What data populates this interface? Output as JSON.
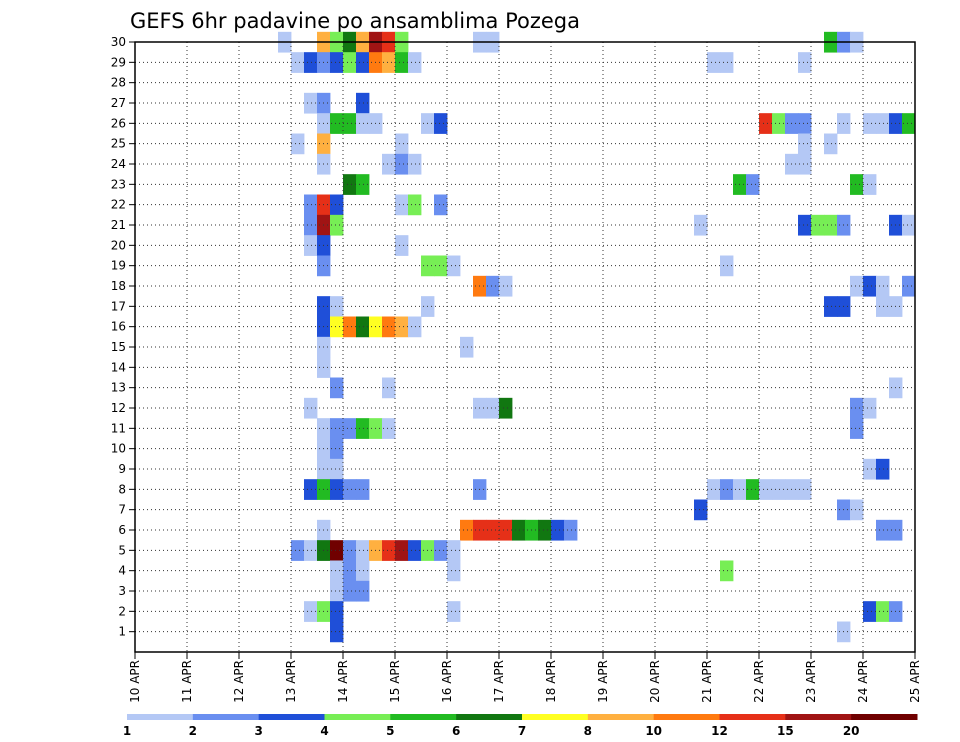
{
  "chart_data": {
    "type": "heatmap",
    "title": "GEFS 6hr padavine po ansamblima Pozega",
    "x_tick_labels": [
      "10 APR",
      "11 APR",
      "12 APR",
      "13 APR",
      "14 APR",
      "15 APR",
      "16 APR",
      "17 APR",
      "18 APR",
      "19 APR",
      "20 APR",
      "21 APR",
      "22 APR",
      "23 APR",
      "24 APR",
      "25 APR"
    ],
    "y_tick_labels": [
      "1",
      "2",
      "3",
      "4",
      "5",
      "6",
      "7",
      "8",
      "9",
      "10",
      "11",
      "12",
      "13",
      "14",
      "15",
      "16",
      "17",
      "18",
      "19",
      "20",
      "21",
      "22",
      "23",
      "24",
      "25",
      "26",
      "27",
      "28",
      "29",
      "30"
    ],
    "time_steps": 60,
    "members": 31,
    "grid": true,
    "colorbar": {
      "labels": [
        "1",
        "2",
        "3",
        "4",
        "5",
        "6",
        "7",
        "8",
        "10",
        "12",
        "15",
        "20"
      ],
      "colors": [
        "#b4c8f5",
        "#6a8ff0",
        "#1f4fd8",
        "#77ee55",
        "#22bb22",
        "#117711",
        "#ffff22",
        "#ffb040",
        "#ff7a10",
        "#e63018",
        "#a01414",
        "#700000"
      ]
    },
    "cells": [
      [
        30,
        11,
        1
      ],
      [
        30,
        14,
        8
      ],
      [
        30,
        15,
        4
      ],
      [
        30,
        16,
        6
      ],
      [
        30,
        17,
        8
      ],
      [
        30,
        18,
        11
      ],
      [
        30,
        19,
        10
      ],
      [
        30,
        20,
        4
      ],
      [
        30,
        26,
        1
      ],
      [
        30,
        27,
        1
      ],
      [
        30,
        53,
        5
      ],
      [
        30,
        54,
        2
      ],
      [
        30,
        55,
        1
      ],
      [
        29,
        12,
        1
      ],
      [
        29,
        13,
        3
      ],
      [
        29,
        14,
        2
      ],
      [
        29,
        15,
        3
      ],
      [
        29,
        16,
        4
      ],
      [
        29,
        17,
        3
      ],
      [
        29,
        18,
        9
      ],
      [
        29,
        19,
        8
      ],
      [
        29,
        20,
        5
      ],
      [
        29,
        21,
        1
      ],
      [
        29,
        44,
        1
      ],
      [
        29,
        45,
        1
      ],
      [
        29,
        51,
        1
      ],
      [
        27,
        13,
        1
      ],
      [
        27,
        14,
        2
      ],
      [
        27,
        17,
        3
      ],
      [
        26,
        14,
        1
      ],
      [
        26,
        15,
        5
      ],
      [
        26,
        16,
        5
      ],
      [
        26,
        17,
        1
      ],
      [
        26,
        18,
        1
      ],
      [
        26,
        22,
        1
      ],
      [
        26,
        23,
        3
      ],
      [
        26,
        48,
        10
      ],
      [
        26,
        49,
        4
      ],
      [
        26,
        50,
        2
      ],
      [
        26,
        51,
        2
      ],
      [
        26,
        54,
        1
      ],
      [
        26,
        56,
        1
      ],
      [
        26,
        57,
        1
      ],
      [
        26,
        58,
        3
      ],
      [
        26,
        59,
        5
      ],
      [
        25,
        12,
        1
      ],
      [
        25,
        14,
        8
      ],
      [
        25,
        20,
        1
      ],
      [
        25,
        51,
        1
      ],
      [
        25,
        53,
        1
      ],
      [
        24,
        14,
        1
      ],
      [
        24,
        19,
        1
      ],
      [
        24,
        20,
        2
      ],
      [
        24,
        21,
        1
      ],
      [
        24,
        50,
        1
      ],
      [
        24,
        51,
        1
      ],
      [
        23,
        16,
        6
      ],
      [
        23,
        17,
        5
      ],
      [
        23,
        46,
        5
      ],
      [
        23,
        47,
        2
      ],
      [
        23,
        55,
        5
      ],
      [
        23,
        56,
        1
      ],
      [
        22,
        13,
        2
      ],
      [
        22,
        14,
        10
      ],
      [
        22,
        15,
        3
      ],
      [
        22,
        20,
        1
      ],
      [
        22,
        21,
        4
      ],
      [
        22,
        23,
        2
      ],
      [
        21,
        13,
        2
      ],
      [
        21,
        14,
        11
      ],
      [
        21,
        15,
        4
      ],
      [
        21,
        43,
        1
      ],
      [
        21,
        51,
        3
      ],
      [
        21,
        52,
        4
      ],
      [
        21,
        53,
        4
      ],
      [
        21,
        54,
        2
      ],
      [
        21,
        58,
        3
      ],
      [
        21,
        59,
        1
      ],
      [
        20,
        13,
        1
      ],
      [
        20,
        14,
        3
      ],
      [
        20,
        20,
        1
      ],
      [
        19,
        14,
        2
      ],
      [
        19,
        22,
        4
      ],
      [
        19,
        23,
        4
      ],
      [
        19,
        24,
        1
      ],
      [
        19,
        45,
        1
      ],
      [
        18,
        26,
        9
      ],
      [
        18,
        27,
        2
      ],
      [
        18,
        28,
        1
      ],
      [
        18,
        55,
        1
      ],
      [
        18,
        56,
        3
      ],
      [
        18,
        57,
        1
      ],
      [
        18,
        59,
        2
      ],
      [
        17,
        14,
        3
      ],
      [
        17,
        15,
        1
      ],
      [
        17,
        22,
        1
      ],
      [
        17,
        53,
        3
      ],
      [
        17,
        54,
        3
      ],
      [
        17,
        57,
        1
      ],
      [
        17,
        58,
        1
      ],
      [
        16,
        14,
        3
      ],
      [
        16,
        15,
        7
      ],
      [
        16,
        16,
        9
      ],
      [
        16,
        17,
        6
      ],
      [
        16,
        18,
        7
      ],
      [
        16,
        19,
        9
      ],
      [
        16,
        20,
        8
      ],
      [
        16,
        21,
        1
      ],
      [
        15,
        14,
        1
      ],
      [
        15,
        25,
        1
      ],
      [
        14,
        14,
        1
      ],
      [
        13,
        15,
        2
      ],
      [
        13,
        19,
        1
      ],
      [
        13,
        58,
        1
      ],
      [
        12,
        13,
        1
      ],
      [
        12,
        26,
        1
      ],
      [
        12,
        27,
        1
      ],
      [
        12,
        28,
        6
      ],
      [
        12,
        55,
        2
      ],
      [
        12,
        56,
        1
      ],
      [
        11,
        14,
        1
      ],
      [
        11,
        15,
        2
      ],
      [
        11,
        16,
        2
      ],
      [
        11,
        17,
        5
      ],
      [
        11,
        18,
        4
      ],
      [
        11,
        19,
        1
      ],
      [
        11,
        55,
        2
      ],
      [
        10,
        14,
        1
      ],
      [
        10,
        15,
        2
      ],
      [
        9,
        14,
        1
      ],
      [
        9,
        15,
        1
      ],
      [
        9,
        56,
        1
      ],
      [
        9,
        57,
        3
      ],
      [
        8,
        13,
        3
      ],
      [
        8,
        14,
        5
      ],
      [
        8,
        15,
        3
      ],
      [
        8,
        16,
        2
      ],
      [
        8,
        17,
        2
      ],
      [
        8,
        26,
        2
      ],
      [
        8,
        44,
        1
      ],
      [
        8,
        45,
        2
      ],
      [
        8,
        46,
        1
      ],
      [
        8,
        47,
        5
      ],
      [
        8,
        48,
        1
      ],
      [
        8,
        49,
        1
      ],
      [
        8,
        50,
        1
      ],
      [
        8,
        51,
        1
      ],
      [
        7,
        43,
        3
      ],
      [
        7,
        54,
        2
      ],
      [
        7,
        55,
        1
      ],
      [
        6,
        14,
        1
      ],
      [
        6,
        25,
        9
      ],
      [
        6,
        26,
        10
      ],
      [
        6,
        27,
        10
      ],
      [
        6,
        28,
        10
      ],
      [
        6,
        29,
        6
      ],
      [
        6,
        30,
        5
      ],
      [
        6,
        31,
        6
      ],
      [
        6,
        32,
        3
      ],
      [
        6,
        33,
        2
      ],
      [
        6,
        57,
        2
      ],
      [
        6,
        58,
        2
      ],
      [
        5,
        12,
        2
      ],
      [
        5,
        13,
        1
      ],
      [
        5,
        14,
        6
      ],
      [
        5,
        15,
        12
      ],
      [
        5,
        16,
        2
      ],
      [
        5,
        17,
        1
      ],
      [
        5,
        18,
        8
      ],
      [
        5,
        19,
        10
      ],
      [
        5,
        20,
        11
      ],
      [
        5,
        21,
        3
      ],
      [
        5,
        22,
        4
      ],
      [
        5,
        23,
        2
      ],
      [
        5,
        24,
        1
      ],
      [
        4,
        15,
        1
      ],
      [
        4,
        16,
        2
      ],
      [
        4,
        17,
        1
      ],
      [
        4,
        24,
        1
      ],
      [
        4,
        45,
        4
      ],
      [
        3,
        15,
        1
      ],
      [
        3,
        16,
        2
      ],
      [
        3,
        17,
        2
      ],
      [
        2,
        13,
        1
      ],
      [
        2,
        14,
        4
      ],
      [
        2,
        15,
        3
      ],
      [
        2,
        24,
        1
      ],
      [
        2,
        56,
        3
      ],
      [
        2,
        57,
        4
      ],
      [
        2,
        58,
        2
      ],
      [
        1,
        15,
        3
      ],
      [
        1,
        54,
        1
      ]
    ]
  }
}
